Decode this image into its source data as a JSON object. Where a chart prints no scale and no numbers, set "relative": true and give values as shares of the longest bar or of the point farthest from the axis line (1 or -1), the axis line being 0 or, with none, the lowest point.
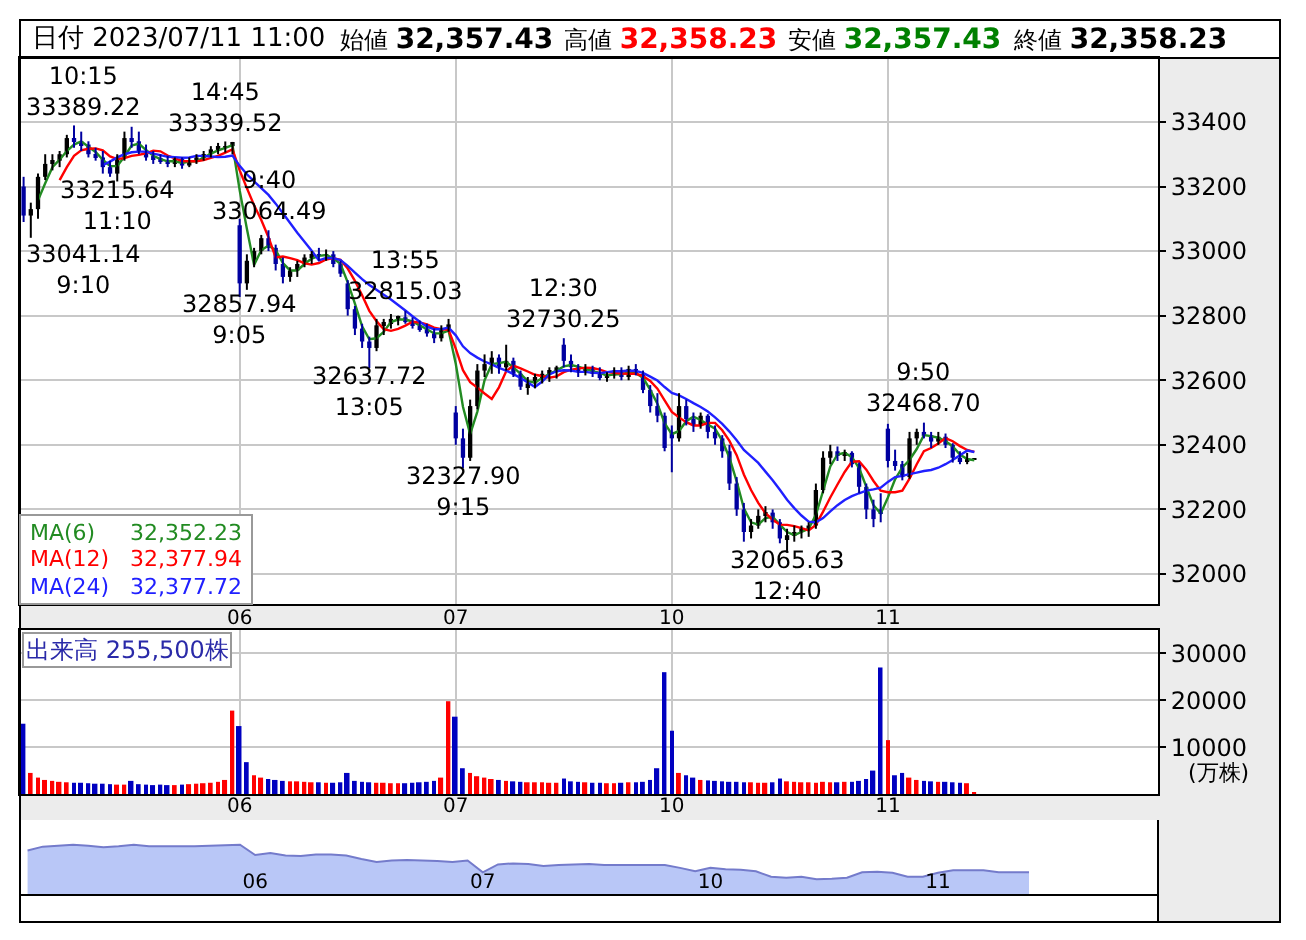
{
  "chart_data": [
    {
      "type": "candlestick",
      "title": "日付 2023/07/11 11:00",
      "subtitle": "始値 32,357.43 高値 32,358.23 安値 32,357.43 終値 32,358.23",
      "annotations": [
        "33041.14\n9:10",
        {
          "text": "10:15\n33389.22",
          "y": 33389.22
        },
        {
          "text": "33215.64\n11:10",
          "y": 33215.64
        },
        {
          "text": "14:45\n33339.52",
          "y": 33339.52
        },
        {
          "text": "32857.94\n9:05",
          "y": 32857.94
        },
        {
          "text": "9:40\n33064.49",
          "y": 33064.49
        },
        {
          "text": "32637.72\n13:05",
          "y": 32637.72
        },
        {
          "text": "13:55\n32815.03",
          "y": 32815.03
        },
        {
          "text": "32327.90\n9:15",
          "y": 32327.9
        },
        {
          "text": "12:30\n32730.25",
          "y": 32730.25
        },
        {
          "text": "32065.63\n12:40",
          "y": 32065.63
        },
        {
          "text": "9:50\n32468.70",
          "y": 32468.7
        }
      ],
      "categories": [
        null,
        null,
        null,
        null,
        null,
        null,
        null,
        null,
        null,
        null,
        null,
        null,
        null,
        null,
        null,
        null,
        null,
        null,
        null,
        null,
        null,
        null,
        null,
        null,
        null,
        null,
        null,
        null,
        null,
        null,
        "06",
        null,
        null,
        null,
        null,
        null,
        null,
        null,
        null,
        null,
        null,
        null,
        null,
        null,
        null,
        null,
        null,
        null,
        null,
        null,
        null,
        null,
        null,
        null,
        null,
        null,
        null,
        null,
        null,
        null,
        "07",
        null,
        null,
        null,
        null,
        null,
        null,
        null,
        null,
        null,
        null,
        null,
        null,
        null,
        null,
        null,
        null,
        null,
        null,
        null,
        null,
        null,
        null,
        null,
        null,
        null,
        null,
        null,
        null,
        null,
        "10",
        null,
        null,
        null,
        null,
        null,
        null,
        null,
        null,
        null,
        null,
        null,
        null,
        null,
        null,
        null,
        null,
        null,
        null,
        null,
        null,
        null,
        null,
        null,
        null,
        null,
        null,
        null,
        null,
        null,
        "11",
        null,
        null,
        null,
        null,
        null,
        null,
        null,
        null,
        null,
        null,
        null,
        null,
        null,
        null,
        null,
        null,
        null,
        null,
        null,
        null,
        null,
        null,
        null,
        null,
        null,
        null,
        null,
        null,
        null,
        null,
        null,
        null,
        null,
        null,
        null,
        null,
        null
      ],
      "ohlc": [
        [
          33200,
          33230,
          33090,
          33110
        ],
        [
          33110,
          33150,
          33041.14,
          33130
        ],
        [
          33130,
          33240,
          33100,
          33230
        ],
        [
          33230,
          33300,
          33220,
          33270
        ],
        [
          33270,
          33300,
          33250,
          33280
        ],
        [
          33280,
          33310,
          33260,
          33300
        ],
        [
          33300,
          33360,
          33290,
          33350
        ],
        [
          33350,
          33389.22,
          33320,
          33340
        ],
        [
          33340,
          33370,
          33310,
          33330
        ],
        [
          33330,
          33340,
          33290,
          33300
        ],
        [
          33300,
          33320,
          33280,
          33290
        ],
        [
          33290,
          33310,
          33240,
          33260
        ],
        [
          33260,
          33280,
          33230,
          33240
        ],
        [
          33240,
          33300,
          33215.64,
          33290
        ],
        [
          33290,
          33370,
          33280,
          33350
        ],
        [
          33350,
          33385,
          33320,
          33340
        ],
        [
          33340,
          33370,
          33300,
          33310
        ],
        [
          33310,
          33330,
          33280,
          33290
        ],
        [
          33290,
          33310,
          33270,
          33285
        ],
        [
          33285,
          33300,
          33270,
          33280
        ],
        [
          33280,
          33295,
          33260,
          33270
        ],
        [
          33270,
          33290,
          33260,
          33285
        ],
        [
          33285,
          33290,
          33255,
          33265
        ],
        [
          33265,
          33290,
          33260,
          33280
        ],
        [
          33280,
          33300,
          33270,
          33290
        ],
        [
          33290,
          33310,
          33280,
          33300
        ],
        [
          33300,
          33325,
          33290,
          33315
        ],
        [
          33315,
          33335,
          33300,
          33320
        ],
        [
          33320,
          33339.52,
          33305,
          33325
        ],
        [
          33325,
          33338,
          33300,
          33338
        ],
        [
          33080,
          33100,
          32857.94,
          32900
        ],
        [
          32900,
          32990,
          32880,
          32970
        ],
        [
          32970,
          33010,
          32950,
          33000
        ],
        [
          33000,
          33050,
          32990,
          33040
        ],
        [
          33040,
          33064.49,
          33000,
          33010
        ],
        [
          33010,
          33020,
          32940,
          32960
        ],
        [
          32960,
          32980,
          32900,
          32920
        ],
        [
          32920,
          32950,
          32905,
          32940
        ],
        [
          32940,
          32970,
          32920,
          32960
        ],
        [
          32960,
          32990,
          32950,
          32980
        ],
        [
          32980,
          33000,
          32960,
          32990
        ],
        [
          32990,
          33010,
          32970,
          32985
        ],
        [
          32985,
          33005,
          32970,
          32990
        ],
        [
          32990,
          33000,
          32950,
          32960
        ],
        [
          32960,
          32970,
          32920,
          32930
        ],
        [
          32900,
          32910,
          32800,
          32820
        ],
        [
          32820,
          32830,
          32740,
          32760
        ],
        [
          32760,
          32775,
          32700,
          32720
        ],
        [
          32720,
          32735,
          32637.72,
          32700
        ],
        [
          32700,
          32790,
          32690,
          32770
        ],
        [
          32770,
          32790,
          32740,
          32780
        ],
        [
          32780,
          32805,
          32760,
          32790
        ],
        [
          32790,
          32800,
          32770,
          32795
        ],
        [
          32795,
          32815.03,
          32775,
          32780
        ],
        [
          32780,
          32795,
          32760,
          32770
        ],
        [
          32770,
          32785,
          32750,
          32760
        ],
        [
          32760,
          32775,
          32735,
          32745
        ],
        [
          32745,
          32760,
          32715,
          32730
        ],
        [
          32730,
          32770,
          32720,
          32760
        ],
        [
          32760,
          32790,
          32750,
          32773
        ],
        [
          32500,
          32520,
          32400,
          32420
        ],
        [
          32420,
          32450,
          32327.9,
          32360
        ],
        [
          32360,
          32540,
          32350,
          32520
        ],
        [
          32520,
          32650,
          32510,
          32630
        ],
        [
          32630,
          32680,
          32610,
          32650
        ],
        [
          32650,
          32690,
          32620,
          32670
        ],
        [
          32670,
          32680,
          32620,
          32640
        ],
        [
          32640,
          32710,
          32630,
          32660
        ],
        [
          32660,
          32670,
          32610,
          32620
        ],
        [
          32620,
          32630,
          32570,
          32580
        ],
        [
          32580,
          32610,
          32555,
          32590
        ],
        [
          32590,
          32620,
          32575,
          32610
        ],
        [
          32610,
          32630,
          32590,
          32620
        ],
        [
          32620,
          32640,
          32595,
          32630
        ],
        [
          32630,
          32645,
          32605,
          32640
        ],
        [
          32710,
          32730.25,
          32640,
          32660
        ],
        [
          32660,
          32680,
          32625,
          32640
        ],
        [
          32640,
          32650,
          32610,
          32625
        ],
        [
          32625,
          32650,
          32615,
          32640
        ],
        [
          32640,
          32645,
          32610,
          32620
        ],
        [
          32620,
          32640,
          32600,
          32610
        ],
        [
          32610,
          32625,
          32595,
          32615
        ],
        [
          32615,
          32640,
          32605,
          32630
        ],
        [
          32630,
          32640,
          32600,
          32610
        ],
        [
          32610,
          32645,
          32600,
          32635
        ],
        [
          32635,
          32650,
          32615,
          32620
        ],
        [
          32620,
          32630,
          32560,
          32570
        ],
        [
          32570,
          32585,
          32500,
          32520
        ],
        [
          32520,
          32560,
          32470,
          32490
        ],
        [
          32490,
          32500,
          32380,
          32390
        ],
        [
          32440,
          32460,
          32315,
          32420
        ],
        [
          32420,
          32560,
          32410,
          32520
        ],
        [
          32520,
          32540,
          32460,
          32480
        ],
        [
          32480,
          32500,
          32440,
          32460
        ],
        [
          32460,
          32500,
          32450,
          32490
        ],
        [
          32490,
          32495,
          32420,
          32440
        ],
        [
          32440,
          32460,
          32400,
          32420
        ],
        [
          32420,
          32430,
          32360,
          32380
        ],
        [
          32380,
          32400,
          32260,
          32280
        ],
        [
          32280,
          32300,
          32180,
          32200
        ],
        [
          32200,
          32220,
          32100,
          32130
        ],
        [
          32130,
          32170,
          32110,
          32150
        ],
        [
          32150,
          32200,
          32140,
          32180
        ],
        [
          32180,
          32210,
          32160,
          32190
        ],
        [
          32190,
          32200,
          32140,
          32160
        ],
        [
          32160,
          32170,
          32095,
          32110
        ],
        [
          32110,
          32140,
          32065.63,
          32120
        ],
        [
          32120,
          32150,
          32100,
          32130
        ],
        [
          32130,
          32150,
          32110,
          32140
        ],
        [
          32140,
          32160,
          32115,
          32150
        ],
        [
          32150,
          32280,
          32140,
          32260
        ],
        [
          32260,
          32380,
          32250,
          32360
        ],
        [
          32360,
          32400,
          32340,
          32380
        ],
        [
          32380,
          32395,
          32350,
          32370
        ],
        [
          32370,
          32385,
          32350,
          32375
        ],
        [
          32375,
          32380,
          32330,
          32340
        ],
        [
          32340,
          32345,
          32250,
          32270
        ],
        [
          32270,
          32280,
          32170,
          32200
        ],
        [
          32200,
          32230,
          32145,
          32170
        ],
        [
          32200,
          32250,
          32160,
          32190
        ],
        [
          32450,
          32465,
          32330,
          32350
        ],
        [
          32350,
          32385,
          32320,
          32340
        ],
        [
          32340,
          32350,
          32290,
          32300
        ],
        [
          32300,
          32440,
          32295,
          32420
        ],
        [
          32420,
          32450,
          32400,
          32440
        ],
        [
          32440,
          32468.7,
          32420,
          32430
        ],
        [
          32430,
          32440,
          32390,
          32410
        ],
        [
          32410,
          32440,
          32400,
          32425
        ],
        [
          32425,
          32435,
          32390,
          32400
        ],
        [
          32400,
          32405,
          32345,
          32360
        ],
        [
          32360,
          32380,
          32340,
          32350
        ],
        [
          32350,
          32375,
          32340,
          32357
        ],
        [
          32357.43,
          32358.23,
          32357.43,
          32358.23
        ],
        null,
        null,
        null,
        null,
        null,
        null,
        null,
        null,
        null,
        null,
        null,
        null,
        null,
        null,
        null,
        null,
        null,
        null,
        null,
        null,
        null,
        null,
        null,
        null,
        null
      ],
      "colors": [
        "#0000a0",
        "#000000",
        "#000000",
        "#000000",
        "#000000",
        "#000000",
        "#000000",
        "#0000a0",
        "#0000a0",
        "#0000a0",
        "#0000a0",
        "#0000a0",
        "#0000a0",
        "#000000",
        "#000000",
        "#0000a0",
        "#0000a0",
        "#0000a0",
        "#0000a0",
        "#0000a0",
        "#0000a0",
        "#000000",
        "#0000a0",
        "#000000",
        "#000000",
        "#000000",
        "#000000",
        "#000000",
        "#000000",
        "#000000",
        "#0000a0",
        "#000000",
        "#000000",
        "#000000",
        "#0000a0",
        "#0000a0",
        "#0000a0",
        "#000000",
        "#000000",
        "#000000",
        "#000000",
        "#0000a0",
        "#000000",
        "#0000a0",
        "#0000a0",
        "#0000a0",
        "#0000a0",
        "#0000a0",
        "#0000a0",
        "#000000",
        "#000000",
        "#000000",
        "#000000",
        "#0000a0",
        "#0000a0",
        "#0000a0",
        "#0000a0",
        "#0000a0",
        "#000000",
        "#000000",
        "#0000a0",
        "#0000a0",
        "#000000",
        "#000000",
        "#000000",
        "#000000",
        "#0000a0",
        "#000000",
        "#0000a0",
        "#0000a0",
        "#000000",
        "#000000",
        "#000000",
        "#000000",
        "#000000",
        "#0000a0",
        "#0000a0",
        "#0000a0",
        "#000000",
        "#0000a0",
        "#0000a0",
        "#000000",
        "#000000",
        "#0000a0",
        "#000000",
        "#0000a0",
        "#0000a0",
        "#0000a0",
        "#0000a0",
        "#0000a0",
        "#0000a0",
        "#000000",
        "#0000a0",
        "#0000a0",
        "#000000",
        "#0000a0",
        "#0000a0",
        "#0000a0",
        "#0000a0",
        "#0000a0",
        "#0000a0",
        "#000000",
        "#000000",
        "#000000",
        "#0000a0",
        "#0000a0",
        "#000000",
        "#000000",
        "#000000",
        "#000000",
        "#000000",
        "#000000",
        "#000000",
        "#0000a0",
        "#000000",
        "#0000a0",
        "#0000a0",
        "#0000a0",
        "#0000a0",
        "#0000a0",
        "#0000a0",
        "#0000a0",
        "#0000a0",
        "#000000",
        "#000000",
        "#0000a0",
        "#0000a0",
        "#000000",
        "#0000a0",
        "#0000a0",
        "#0000a0",
        "#000000",
        "#000000",
        null,
        null,
        null,
        null,
        null,
        null,
        null,
        null,
        null,
        null,
        null,
        null,
        null,
        null,
        null,
        null,
        null,
        null,
        null,
        null,
        null,
        null,
        null,
        null,
        null
      ],
      "series": [
        {
          "name": "MA(6) 32,352.23",
          "type": "line",
          "color": "#228b22",
          "values": [
            null,
            null,
            33157,
            33210,
            33260,
            33283,
            33310,
            33330,
            33340,
            33323,
            33307,
            33283,
            33263,
            33263,
            33293,
            33327,
            33333,
            33313,
            33295,
            33285,
            33278,
            33278,
            33273,
            33277,
            33278,
            33290,
            33302,
            33312,
            33320,
            33328,
            33188,
            33069,
            32957,
            33003,
            33017,
            33003,
            32963,
            32940,
            32940,
            32960,
            32977,
            32985,
            32988,
            32978,
            32960,
            32903,
            32837,
            32767,
            32727,
            32730,
            32750,
            32780,
            32788,
            32788,
            32782,
            32770,
            32758,
            32745,
            32745,
            32754,
            32651,
            32518,
            32433,
            32503,
            32600,
            32650,
            32653,
            32657,
            32640,
            32620,
            32597,
            32593,
            32607,
            32620,
            32630,
            32643,
            32647,
            32642,
            32635,
            32628,
            32623,
            32615,
            32618,
            32618,
            32625,
            32622,
            32608,
            32570,
            32527,
            32467,
            32433,
            32443,
            32473,
            32487,
            32477,
            32463,
            32450,
            32413,
            32360,
            32287,
            32203,
            32160,
            32153,
            32173,
            32177,
            32153,
            32130,
            32120,
            32130,
            32140,
            32183,
            32257,
            32333,
            32370,
            32375,
            32362,
            32328,
            32270,
            32213,
            32187,
            32237,
            32293,
            32330,
            32353,
            32387,
            32430,
            32427,
            32422,
            32412,
            32395,
            32370,
            32356,
            32352.23,
            null,
            null,
            null,
            null,
            null,
            null,
            null,
            null,
            null,
            null,
            null,
            null,
            null,
            null,
            null,
            null,
            null,
            null,
            null,
            null,
            null,
            null,
            null,
            null,
            null
          ]
        },
        {
          "name": "MA(12) 32,377.94",
          "type": "line",
          "color": "#ff0000",
          "values": [
            null,
            null,
            null,
            null,
            null,
            33220,
            33260,
            33295,
            33312,
            33317,
            33318,
            33312,
            33293,
            33285,
            33288,
            33295,
            33298,
            33303,
            33311,
            33309,
            33296,
            33287,
            33279,
            33278,
            33278,
            33282,
            33289,
            33295,
            33305,
            33315,
            33250,
            33195,
            33142,
            33096,
            33043,
            32980,
            32983,
            32978,
            32972,
            32962,
            32958,
            32963,
            32974,
            32978,
            32973,
            32946,
            32908,
            32863,
            32815,
            32783,
            32758,
            32753,
            32759,
            32769,
            32781,
            32779,
            32773,
            32763,
            32758,
            32756,
            32698,
            32631,
            32594,
            32577,
            32559,
            32542,
            32578,
            32628,
            32645,
            32637,
            32627,
            32617,
            32613,
            32608,
            32612,
            32625,
            32633,
            32636,
            32639,
            32638,
            32633,
            32625,
            32623,
            32621,
            32620,
            32620,
            32613,
            32598,
            32574,
            32538,
            32502,
            32485,
            32470,
            32460,
            32460,
            32468,
            32468,
            32445,
            32412,
            32368,
            32308,
            32260,
            32220,
            32188,
            32168,
            32153,
            32152,
            32148,
            32142,
            32135,
            32152,
            32193,
            32237,
            32277,
            32316,
            32348,
            32349,
            32323,
            32288,
            32258,
            32253,
            32253,
            32258,
            32295,
            32340,
            32380,
            32390,
            32404,
            32421,
            32411,
            32396,
            32384,
            32377.94,
            null,
            null,
            null,
            null,
            null,
            null,
            null,
            null,
            null,
            null,
            null,
            null,
            null,
            null,
            null,
            null,
            null,
            null,
            null,
            null,
            null,
            null,
            null,
            null,
            null
          ]
        },
        {
          "name": "MA(24) 32,377.72",
          "type": "line",
          "color": "#2020ff",
          "values": [
            null,
            null,
            null,
            null,
            null,
            null,
            null,
            null,
            null,
            null,
            null,
            33266,
            33277,
            33290,
            33300,
            33306,
            33308,
            33308,
            33302,
            33297,
            33292,
            33291,
            33289,
            33290,
            33295,
            33295,
            33293,
            33291,
            33292,
            33296,
            33264,
            33238,
            33216,
            33195,
            33174,
            33147,
            33117,
            33087,
            33057,
            33029,
            33001,
            32971,
            32979,
            32978,
            32972,
            32954,
            32933,
            32913,
            32895,
            32880,
            32865,
            32850,
            32833,
            32816,
            32798,
            32781,
            32766,
            32758,
            32758,
            32763,
            32739,
            32705,
            32684,
            32670,
            32658,
            32649,
            32638,
            32630,
            32619,
            32607,
            32593,
            32579,
            32596,
            32618,
            32628,
            32631,
            32630,
            32626,
            32626,
            32623,
            32622,
            32625,
            32628,
            32628,
            32630,
            32629,
            32623,
            32611,
            32599,
            32579,
            32561,
            32553,
            32542,
            32529,
            32517,
            32503,
            32485,
            32465,
            32441,
            32414,
            32384,
            32364,
            32344,
            32317,
            32290,
            32261,
            32230,
            32204,
            32181,
            32162,
            32160,
            32173,
            32194,
            32213,
            32229,
            32241,
            32250,
            32258,
            32262,
            32267,
            32285,
            32300,
            32304,
            32309,
            32314,
            32319,
            32322,
            32329,
            32340,
            32353,
            32368,
            32382,
            32377.72,
            null,
            null,
            null,
            null,
            null,
            null,
            null,
            null,
            null,
            null,
            null,
            null,
            null,
            null,
            null,
            null,
            null,
            null,
            null,
            null,
            null,
            null,
            null,
            null,
            null
          ]
        }
      ],
      "ylim": [
        31907,
        33598
      ],
      "yticks": [
        32000,
        32200,
        32400,
        32600,
        32800,
        33000,
        33200,
        33400
      ],
      "grid": true,
      "legend": "bottom left"
    },
    {
      "type": "bar",
      "title": "出来高 255,500株",
      "ylabel": "(万株)",
      "categories": [
        null,
        null,
        null,
        null,
        null,
        null,
        null,
        null,
        null,
        null,
        null,
        null,
        null,
        null,
        null,
        null,
        null,
        null,
        null,
        null,
        null,
        null,
        null,
        null,
        null,
        null,
        null,
        null,
        null,
        null,
        "06",
        null,
        null,
        null,
        null,
        null,
        null,
        null,
        null,
        null,
        null,
        null,
        null,
        null,
        null,
        null,
        null,
        null,
        null,
        null,
        null,
        null,
        null,
        null,
        null,
        null,
        null,
        null,
        null,
        null,
        "07",
        null,
        null,
        null,
        null,
        null,
        null,
        null,
        null,
        null,
        null,
        null,
        null,
        null,
        null,
        null,
        null,
        null,
        null,
        null,
        null,
        null,
        null,
        null,
        null,
        null,
        null,
        null,
        null,
        null,
        "10",
        null,
        null,
        null,
        null,
        null,
        null,
        null,
        null,
        null,
        null,
        null,
        null,
        null,
        null,
        null,
        null,
        null,
        null,
        null,
        null,
        null,
        null,
        null,
        null,
        null,
        null,
        null,
        null,
        null,
        "11",
        null,
        null,
        null,
        null,
        null,
        null,
        null,
        null,
        null,
        null,
        null,
        null,
        null,
        null,
        null,
        null,
        null,
        null,
        null,
        null,
        null,
        null,
        null,
        null,
        null,
        null,
        null,
        null,
        null,
        null,
        null,
        null,
        null,
        null,
        null,
        null,
        null
      ],
      "values": [
        15000,
        4500,
        3500,
        3000,
        2800,
        2600,
        2500,
        2400,
        2400,
        2300,
        2200,
        2200,
        2100,
        2000,
        2000,
        2800,
        2100,
        2000,
        1900,
        2000,
        1900,
        1900,
        2000,
        2100,
        2200,
        2300,
        2400,
        2600,
        3000,
        17800,
        14500,
        6800,
        4000,
        3500,
        3200,
        3000,
        2800,
        2700,
        2700,
        2600,
        2500,
        2500,
        2400,
        2400,
        2500,
        4500,
        2800,
        2600,
        2500,
        2400,
        2400,
        2300,
        2300,
        2300,
        2400,
        2500,
        2600,
        2800,
        3500,
        19800,
        16500,
        5500,
        4500,
        3800,
        3500,
        3200,
        3000,
        2800,
        2700,
        2600,
        2500,
        2500,
        2500,
        2400,
        2400,
        3300,
        2700,
        2600,
        2500,
        2400,
        2400,
        2300,
        2300,
        2400,
        2500,
        2500,
        2600,
        3000,
        5500,
        26000,
        13500,
        4500,
        4000,
        3500,
        3000,
        2900,
        2800,
        2700,
        2600,
        2600,
        2500,
        2500,
        2400,
        2400,
        2500,
        3300,
        2700,
        2600,
        2500,
        2500,
        2400,
        2600,
        2500,
        2500,
        2600,
        2600,
        2800,
        3200,
        5000,
        27000,
        11500,
        4000,
        4500,
        3500,
        3000,
        2800,
        2700,
        2600,
        2600,
        2500,
        2400,
        2300,
        25.55,
        null,
        null,
        null,
        null,
        null,
        null,
        null,
        null,
        null,
        null,
        null,
        null,
        null,
        null,
        null,
        null,
        null,
        null,
        null,
        null,
        null,
        null,
        null,
        null,
        null
      ],
      "colors": [
        "#0000c0",
        "#ff0000",
        "#ff0000",
        "#ff0000",
        "#ff0000",
        "#ff0000",
        "#ff0000",
        "#0000c0",
        "#0000c0",
        "#0000c0",
        "#0000c0",
        "#0000c0",
        "#0000c0",
        "#ff0000",
        "#ff0000",
        "#0000c0",
        "#0000c0",
        "#0000c0",
        "#0000c0",
        "#0000c0",
        "#0000c0",
        "#ff0000",
        "#0000c0",
        "#ff0000",
        "#ff0000",
        "#ff0000",
        "#ff0000",
        "#ff0000",
        "#ff0000",
        "#ff0000",
        "#0000c0",
        "#0000c0",
        "#ff0000",
        "#ff0000",
        "#0000c0",
        "#0000c0",
        "#0000c0",
        "#ff0000",
        "#ff0000",
        "#ff0000",
        "#ff0000",
        "#0000c0",
        "#ff0000",
        "#0000c0",
        "#0000c0",
        "#0000c0",
        "#0000c0",
        "#0000c0",
        "#0000c0",
        "#ff0000",
        "#ff0000",
        "#ff0000",
        "#ff0000",
        "#0000c0",
        "#0000c0",
        "#0000c0",
        "#0000c0",
        "#0000c0",
        "#ff0000",
        "#ff0000",
        "#0000c0",
        "#0000c0",
        "#ff0000",
        "#ff0000",
        "#ff0000",
        "#ff0000",
        "#0000c0",
        "#ff0000",
        "#0000c0",
        "#0000c0",
        "#ff0000",
        "#ff0000",
        "#ff0000",
        "#ff0000",
        "#ff0000",
        "#0000c0",
        "#0000c0",
        "#0000c0",
        "#ff0000",
        "#0000c0",
        "#0000c0",
        "#ff0000",
        "#ff0000",
        "#0000c0",
        "#ff0000",
        "#0000c0",
        "#0000c0",
        "#0000c0",
        "#0000c0",
        "#0000c0",
        "#0000c0",
        "#ff0000",
        "#0000c0",
        "#0000c0",
        "#ff0000",
        "#0000c0",
        "#0000c0",
        "#0000c0",
        "#0000c0",
        "#0000c0",
        "#0000c0",
        "#ff0000",
        "#ff0000",
        "#ff0000",
        "#0000c0",
        "#0000c0",
        "#ff0000",
        "#ff0000",
        "#ff0000",
        "#ff0000",
        "#ff0000",
        "#ff0000",
        "#ff0000",
        "#0000c0",
        "#ff0000",
        "#0000c0",
        "#0000c0",
        "#0000c0",
        "#0000c0",
        "#0000c0",
        "#ff0000",
        "#0000c0",
        "#0000c0",
        "#ff0000",
        "#ff0000",
        "#0000c0",
        "#0000c0",
        "#ff0000",
        "#0000c0",
        "#0000c0",
        "#0000c0",
        "#ff0000",
        "#ff0000",
        null,
        null,
        null,
        null,
        null,
        null,
        null,
        null,
        null,
        null,
        null,
        null,
        null,
        null,
        null,
        null,
        null,
        null,
        null,
        null,
        null,
        null,
        null,
        null,
        null
      ],
      "ylim": [
        0,
        35000
      ],
      "yticks": [
        10000,
        20000,
        30000
      ],
      "grid": true
    },
    {
      "type": "area",
      "relative": true,
      "color": "#b9c7f7",
      "categories": [
        null,
        null,
        null,
        null,
        null,
        null,
        null,
        null,
        null,
        null,
        null,
        null,
        null,
        null,
        null,
        "06",
        null,
        null,
        null,
        null,
        null,
        null,
        null,
        null,
        null,
        null,
        null,
        null,
        null,
        null,
        "07",
        null,
        null,
        null,
        null,
        null,
        null,
        null,
        null,
        null,
        null,
        null,
        null,
        null,
        null,
        "10",
        null,
        null,
        null,
        null,
        null,
        null,
        null,
        null,
        null,
        null,
        null,
        null,
        null,
        null,
        "11",
        null,
        null,
        null,
        null,
        null,
        null,
        null,
        null,
        null,
        null,
        null,
        null,
        null,
        null
      ],
      "values": [
        0.88,
        0.96,
        0.98,
        1.0,
        0.98,
        0.95,
        0.97,
        1.0,
        0.97,
        0.97,
        0.97,
        0.97,
        0.98,
        0.99,
        1.0,
        0.79,
        0.83,
        0.78,
        0.77,
        0.8,
        0.8,
        0.78,
        0.71,
        0.65,
        0.68,
        0.69,
        0.68,
        0.67,
        0.65,
        0.68,
        0.44,
        0.6,
        0.62,
        0.61,
        0.57,
        0.59,
        0.6,
        0.61,
        0.59,
        0.59,
        0.59,
        0.59,
        0.59,
        0.53,
        0.46,
        0.53,
        0.5,
        0.49,
        0.46,
        0.35,
        0.33,
        0.35,
        0.3,
        0.31,
        0.33,
        0.44,
        0.45,
        0.43,
        0.35,
        0.35,
        0.43,
        0.48,
        0.48,
        0.48,
        0.44,
        0.44,
        0.44,
        null,
        null,
        null,
        null,
        null,
        null,
        null,
        null
      ]
    }
  ]
}
